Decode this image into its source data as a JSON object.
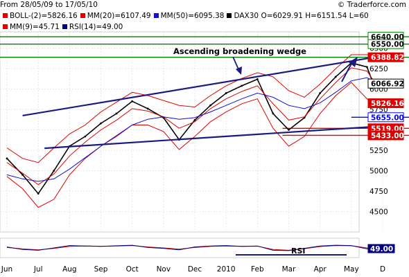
{
  "header": {
    "range": "From 28/05/09 to 17/05/10",
    "copyright": "© Traderforce.com",
    "legend_line1": [
      {
        "text": "BOLL-(2)=5826.16",
        "color": "#e00000"
      },
      {
        "text": "MM(20)=6107.49",
        "color": "#e00000"
      },
      {
        "text": "MM(50)=6095.38",
        "color": "#1010d0"
      },
      {
        "text": "DAX30 O=6029.91 H=6151.54 L=60",
        "color": "#000000"
      }
    ],
    "legend_line2": [
      {
        "text": "MM(9)=45.71",
        "color": "#e00000"
      },
      {
        "text": "RSI(14)=49.00",
        "color": "#000080"
      }
    ]
  },
  "chart_data": {
    "type": "line",
    "title": "",
    "annotation": "Ascending broadening wedge",
    "ylim": [
      4250,
      6700
    ],
    "y_ticks": [
      4500,
      4750,
      5000,
      5250,
      5500,
      5750,
      6000,
      6250,
      6500
    ],
    "x_labels": [
      "Jun",
      "Jul",
      "Aug",
      "Sep",
      "Oct",
      "Nov",
      "Dec",
      "2010",
      "Feb",
      "Mar",
      "Apr",
      "May",
      "D"
    ],
    "price_labels": [
      {
        "value": 6640,
        "text": "6640.00",
        "bg": "#ffffff",
        "color": "#000000",
        "border": "#008000"
      },
      {
        "value": 6550,
        "text": "6550.00",
        "bg": "#ffffff",
        "color": "#000000",
        "border": "#008000"
      },
      {
        "value": 6388.82,
        "text": "6388.82",
        "bg": "#e00000",
        "color": "#ffffff",
        "border": "#e00000"
      },
      {
        "value": 6066.92,
        "text": "6066.92",
        "bg": "#ffffff",
        "color": "#000000",
        "border": "#000000"
      },
      {
        "value": 5826.16,
        "text": "5826.16",
        "bg": "#e00000",
        "color": "#ffffff",
        "border": "#e00000"
      },
      {
        "value": 5655,
        "text": "5655.00",
        "bg": "#ffffff",
        "color": "#0000ff",
        "border": "#0000ff"
      },
      {
        "value": 5519,
        "text": "5519.00",
        "bg": "#e00000",
        "color": "#ffffff",
        "border": "#e00000"
      },
      {
        "value": 5433,
        "text": "5433.00",
        "bg": "#e00000",
        "color": "#ffffff",
        "border": "#e00000"
      }
    ],
    "horizontal_lines": [
      {
        "value": 6640,
        "color": "#008000"
      },
      {
        "value": 6550,
        "color": "#008000"
      },
      {
        "value": 6388.82,
        "color": "#008000"
      }
    ],
    "series": [
      {
        "name": "DAX30",
        "color": "#000000",
        "x": [
          0,
          0.5,
          1,
          1.5,
          2,
          2.5,
          3,
          3.5,
          4,
          4.5,
          5,
          5.5,
          6,
          6.5,
          7,
          7.5,
          8,
          8.5,
          9,
          9.5,
          10,
          10.5,
          11,
          11.5,
          11.7
        ],
        "y": [
          5150,
          4950,
          4720,
          5000,
          5300,
          5420,
          5580,
          5700,
          5850,
          5760,
          5650,
          5380,
          5620,
          5800,
          5950,
          6040,
          6120,
          5700,
          5500,
          5650,
          5950,
          6150,
          6320,
          6270,
          6066.92
        ]
      },
      {
        "name": "MM(20)",
        "color": "#e00000",
        "x": [
          0,
          0.5,
          1,
          1.5,
          2,
          2.5,
          3,
          3.5,
          4,
          4.5,
          5,
          5.5,
          6,
          6.5,
          7,
          7.5,
          8,
          8.5,
          9,
          9.5,
          10,
          10.5,
          11,
          11.5,
          11.7
        ],
        "y": [
          5100,
          4970,
          4830,
          4960,
          5180,
          5350,
          5500,
          5620,
          5760,
          5730,
          5660,
          5520,
          5600,
          5760,
          5880,
          5970,
          6040,
          5820,
          5620,
          5660,
          5880,
          6080,
          6260,
          6220,
          6107.49
        ]
      },
      {
        "name": "MM(50)",
        "color": "#1010d0",
        "x": [
          0,
          0.5,
          1,
          1.5,
          2,
          2.5,
          3,
          3.5,
          4,
          4.5,
          5,
          5.5,
          6,
          6.5,
          7,
          7.5,
          8,
          8.5,
          9,
          9.5,
          10,
          10.5,
          11,
          11.5,
          11.7
        ],
        "y": [
          4950,
          4900,
          4870,
          4900,
          5020,
          5160,
          5300,
          5430,
          5560,
          5630,
          5660,
          5630,
          5650,
          5720,
          5800,
          5880,
          5950,
          5900,
          5800,
          5760,
          5830,
          5960,
          6100,
          6140,
          6095.38
        ]
      }
    ],
    "bollinger": {
      "upper": [
        5280,
        5150,
        5100,
        5280,
        5450,
        5560,
        5720,
        5840,
        5960,
        5920,
        5860,
        5800,
        5780,
        5920,
        6040,
        6130,
        6200,
        6150,
        5980,
        5900,
        6060,
        6250,
        6420,
        6420,
        6380
      ],
      "lower": [
        4930,
        4780,
        4550,
        4650,
        4950,
        5150,
        5300,
        5420,
        5560,
        5560,
        5480,
        5260,
        5420,
        5600,
        5720,
        5820,
        5880,
        5520,
        5300,
        5420,
        5700,
        5920,
        6080,
        5880,
        5826.16
      ]
    },
    "trendlines": [
      {
        "from": [
          0.5,
          5675
        ],
        "to": [
          11.75,
          6390
        ],
        "color": "#1a1a80"
      },
      {
        "from": [
          1.2,
          5275
        ],
        "to": [
          11.75,
          5540
        ],
        "color": "#1a1a80"
      }
    ],
    "support_lines": [
      {
        "value": 5655,
        "from": 11.0,
        "color": "#0000ff"
      },
      {
        "value": 5519,
        "from": 8.8,
        "color": "#e00000"
      },
      {
        "value": 5433,
        "from": 8.8,
        "color": "#e00000"
      }
    ],
    "rsi": {
      "label": "RSI",
      "value_label": "49.00",
      "ylim": [
        0,
        100
      ],
      "rsi_values": [
        55,
        42,
        38,
        50,
        62,
        60,
        58,
        61,
        64,
        52,
        48,
        40,
        55,
        60,
        62,
        58,
        60,
        38,
        36,
        48,
        60,
        64,
        62,
        45,
        49
      ],
      "mm9_values": [
        52,
        45,
        40,
        47,
        58,
        60,
        58,
        60,
        62,
        55,
        50,
        44,
        52,
        58,
        60,
        58,
        59,
        42,
        38,
        46,
        57,
        62,
        61,
        50,
        45.71
      ]
    }
  }
}
